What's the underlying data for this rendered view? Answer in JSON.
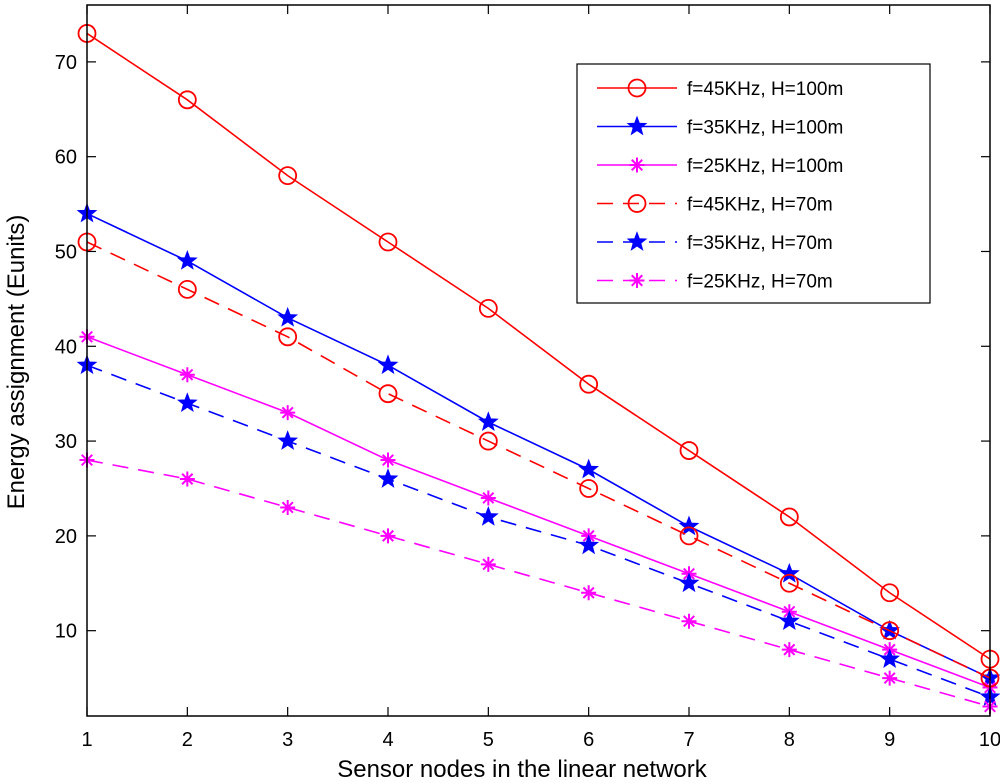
{
  "chart_data": {
    "type": "line",
    "title": "",
    "xlabel": "Sensor nodes in the linear network",
    "ylabel": "Energy assignment (Eunits)",
    "xlim": [
      1,
      10
    ],
    "ylim": [
      1,
      76
    ],
    "xticks": [
      1,
      2,
      3,
      4,
      5,
      6,
      7,
      8,
      9,
      10
    ],
    "yticks": [
      10,
      20,
      30,
      40,
      50,
      60,
      70
    ],
    "grid": false,
    "legend_position": "top-right",
    "x": [
      1,
      2,
      3,
      4,
      5,
      6,
      7,
      8,
      9,
      10
    ],
    "series": [
      {
        "name": "f=45KHz, H=100m",
        "color": "#ff0000",
        "dash": "solid",
        "marker": "circle",
        "values": [
          73,
          66,
          58,
          51,
          44,
          36,
          29,
          22,
          14,
          7
        ]
      },
      {
        "name": "f=35KHz, H=100m",
        "color": "#0000ff",
        "dash": "solid",
        "marker": "star",
        "values": [
          54,
          49,
          43,
          38,
          32,
          27,
          21,
          16,
          10,
          5
        ]
      },
      {
        "name": "f=25KHz, H=100m",
        "color": "#ff00ff",
        "dash": "solid",
        "marker": "asterisk",
        "values": [
          41,
          37,
          33,
          28,
          24,
          20,
          16,
          12,
          8,
          4
        ]
      },
      {
        "name": "f=45KHz, H=70m",
        "color": "#ff0000",
        "dash": "dashed",
        "marker": "circle",
        "values": [
          51,
          46,
          41,
          35,
          30,
          25,
          20,
          15,
          10,
          5
        ]
      },
      {
        "name": "f=35KHz, H=70m",
        "color": "#0000ff",
        "dash": "dashed",
        "marker": "star",
        "values": [
          38,
          34,
          30,
          26,
          22,
          19,
          15,
          11,
          7,
          3
        ]
      },
      {
        "name": "f=25KHz, H=70m",
        "color": "#ff00ff",
        "dash": "dashed",
        "marker": "asterisk",
        "values": [
          28,
          26,
          23,
          20,
          17,
          14,
          11,
          8,
          5,
          2
        ]
      }
    ]
  }
}
